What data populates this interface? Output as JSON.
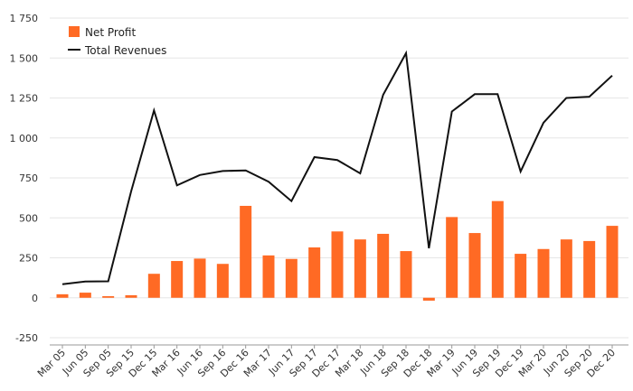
{
  "colors": {
    "bar": "#ff6a24",
    "line": "#111111",
    "grid": "#e6e6e6",
    "axis": "#9a9a9a",
    "text": "#333333"
  },
  "legend": {
    "bar_label": "Net Profit",
    "line_label": "Total Revenues",
    "placement": "top-left"
  },
  "chart_data": {
    "type": "bar",
    "title": "",
    "xlabel": "",
    "ylabel": "",
    "ylim": [
      -250,
      1750
    ],
    "yticks": [
      -250,
      0,
      250,
      500,
      750,
      1000,
      1250,
      1500,
      1750
    ],
    "ytick_labels": [
      "-250",
      "0",
      "250",
      "500",
      "750",
      "1 000",
      "1 250",
      "1 500",
      "1 750"
    ],
    "grid": true,
    "categories": [
      "Mar 05",
      "Jun 05",
      "Sep 05",
      "Sep 15",
      "Dec 15",
      "Mar 16",
      "Jun 16",
      "Sep 16",
      "Dec 16",
      "Mar 17",
      "Jun 17",
      "Sep 17",
      "Dec 17",
      "Mar 18",
      "Jun 18",
      "Sep 18",
      "Dec 18",
      "Mar 19",
      "Jun 19",
      "Sep 19",
      "Dec 19",
      "Mar 20",
      "Jun 20",
      "Sep 20",
      "Dec 20"
    ],
    "series": [
      {
        "name": "Net Profit",
        "type": "bar",
        "values": [
          22,
          32,
          10,
          16,
          150,
          230,
          245,
          212,
          575,
          265,
          243,
          315,
          415,
          365,
          400,
          292,
          -18,
          505,
          405,
          605,
          275,
          305,
          365,
          355,
          450
        ]
      },
      {
        "name": "Total Revenues",
        "type": "line",
        "values": [
          85,
          102,
          103,
          665,
          1172,
          703,
          768,
          793,
          797,
          726,
          605,
          880,
          862,
          778,
          1270,
          1530,
          310,
          1165,
          1274,
          1274,
          790,
          1095,
          1250,
          1258,
          1390
        ]
      }
    ]
  }
}
